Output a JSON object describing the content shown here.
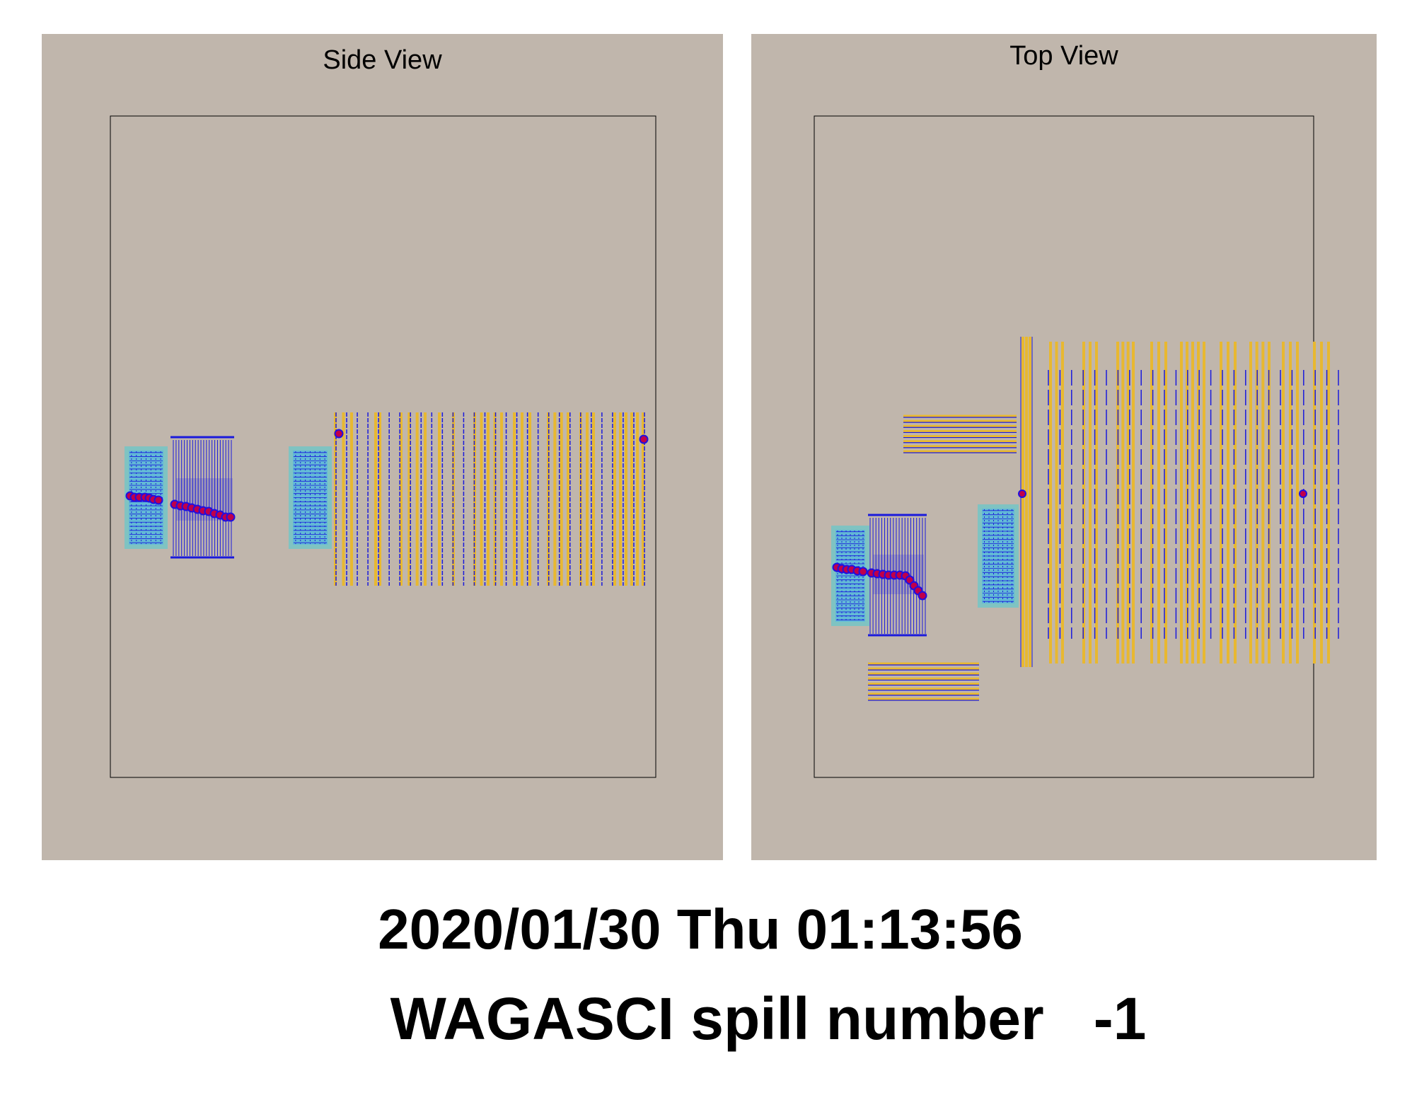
{
  "side_view": {
    "title": "Side View"
  },
  "top_view": {
    "title": "Top View"
  },
  "footer": {
    "timestamp": "2020/01/30 Thu 01:13:56",
    "spill_label": "WAGASCI spill number   -1"
  },
  "colors": {
    "panel_background": "#c0b6ac",
    "water_module_fill": "#62b9d6",
    "water_module_border": "#7fc3c2",
    "scintillator_blue": "#1a1adc",
    "iron_plate_yellow": "#e8b830",
    "hit_marker": "#c0004a",
    "hit_outline": "#2010e0"
  },
  "icons": [
    "hit-marker-icon"
  ]
}
